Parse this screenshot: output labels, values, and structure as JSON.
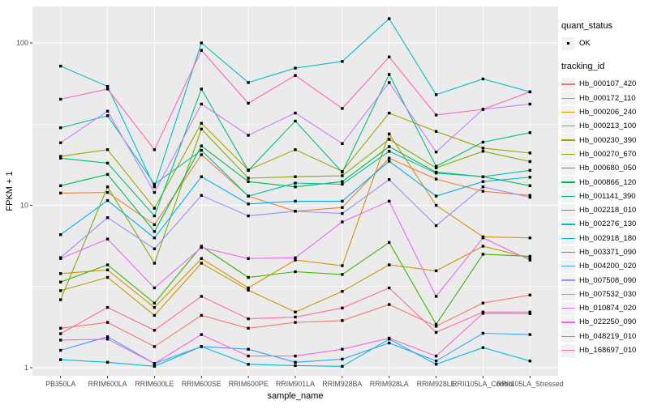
{
  "colors": {
    "panel_bg": "#EBEBEB",
    "grid": "#FFFFFF",
    "legend_key_bg": "#F2F2F2",
    "marker": "#000000",
    "axis_text": "#4D4D4D",
    "title_text": "#000000",
    "tick": "#333333"
  },
  "legend": {
    "quant_status": {
      "title": "quant_status",
      "items": [
        {
          "label": "OK",
          "symbol": "black-square-point"
        }
      ]
    },
    "tracking_id": {
      "title": "tracking_id"
    }
  },
  "chart_data": {
    "type": "line",
    "xlabel": "sample_name",
    "ylabel": "FPKM + 1",
    "yscale": "log10",
    "yticks": [
      1,
      10,
      100
    ],
    "ylim": [
      0.89,
      167
    ],
    "grid": true,
    "legend_position": "right",
    "marker": "black-square",
    "x": [
      "PB350LA",
      "RRIM600LA",
      "RRIM600LE",
      "RRIM600SE",
      "RRIM600PE",
      "RRIM901LA",
      "RRIM928BA",
      "RRIM928LA",
      "RRIM928LE",
      "RRII105LA_Control",
      "RRII105LA_Stressed"
    ],
    "series": [
      {
        "name": "Hb_000107_420",
        "color": "#F8766D",
        "values": [
          1.75,
          1.9,
          1.35,
          2.1,
          1.75,
          1.9,
          1.95,
          2.45,
          1.8,
          2.5,
          2.8
        ]
      },
      {
        "name": "Hb_000172_110",
        "color": "#EA8331",
        "values": [
          11.9,
          12.0,
          7.6,
          20.5,
          11.4,
          9.2,
          9.7,
          19.5,
          14.5,
          12.2,
          11.5
        ]
      },
      {
        "name": "Hb_000206_240",
        "color": "#D89000",
        "values": [
          3.8,
          4.0,
          2.35,
          4.7,
          3.1,
          4.6,
          4.25,
          27.5,
          10.0,
          6.4,
          6.3
        ]
      },
      {
        "name": "Hb_000213_100",
        "color": "#C09B00",
        "values": [
          2.98,
          3.6,
          2.1,
          4.4,
          3.0,
          2.2,
          2.95,
          4.3,
          3.95,
          5.6,
          4.75
        ]
      },
      {
        "name": "Hb_000230_390",
        "color": "#A3A500",
        "values": [
          20.0,
          22.0,
          9.6,
          32.0,
          16.5,
          22.0,
          16.2,
          37.0,
          28.5,
          22.5,
          21.0
        ]
      },
      {
        "name": "Hb_000270_670",
        "color": "#7CAE00",
        "values": [
          2.62,
          13.0,
          4.4,
          29.5,
          14.7,
          15.0,
          15.2,
          25.5,
          17.0,
          21.5,
          18.6
        ]
      },
      {
        "name": "Hb_000680_050",
        "color": "#39B600",
        "values": [
          3.37,
          4.3,
          2.5,
          5.6,
          3.6,
          3.9,
          3.75,
          5.9,
          1.85,
          5.0,
          4.85
        ]
      },
      {
        "name": "Hb_000866_120",
        "color": "#00BB4E",
        "values": [
          13.2,
          15.5,
          6.9,
          23.2,
          14.0,
          13.0,
          14.0,
          23.0,
          16.0,
          15.0,
          13.2
        ]
      },
      {
        "name": "Hb_001141_390",
        "color": "#00BF7D",
        "values": [
          19.5,
          18.2,
          8.6,
          52.0,
          16.4,
          33.0,
          16.0,
          64.0,
          17.4,
          24.5,
          28.0
        ]
      },
      {
        "name": "Hb_002218_010",
        "color": "#00C1A3",
        "values": [
          30.0,
          35.6,
          13.5,
          21.8,
          11.4,
          13.7,
          13.5,
          21.5,
          15.8,
          15.0,
          16.4
        ]
      },
      {
        "name": "Hb_002276_130",
        "color": "#00BFC4",
        "values": [
          72.0,
          54.0,
          13.0,
          100.0,
          57.0,
          70.0,
          77.0,
          141.0,
          48.0,
          60.0,
          50.0
        ]
      },
      {
        "name": "Hb_002918_180",
        "color": "#00BAE0",
        "values": [
          1.12,
          1.08,
          1.02,
          1.35,
          1.05,
          1.03,
          1.02,
          1.5,
          1.05,
          1.33,
          1.1
        ]
      },
      {
        "name": "Hb_003371_090",
        "color": "#00B0F6",
        "values": [
          6.6,
          10.7,
          6.3,
          15.0,
          10.2,
          10.6,
          10.6,
          18.7,
          11.4,
          14.0,
          14.9
        ]
      },
      {
        "name": "Hb_004200_020",
        "color": "#35A2FF",
        "values": [
          1.28,
          1.55,
          1.06,
          1.35,
          1.3,
          1.08,
          1.13,
          1.42,
          1.1,
          1.63,
          1.6
        ]
      },
      {
        "name": "Hb_007508_090",
        "color": "#9590FF",
        "values": [
          4.76,
          8.4,
          5.4,
          11.5,
          8.6,
          9.2,
          8.9,
          14.4,
          7.5,
          13.0,
          11.2
        ]
      },
      {
        "name": "Hb_007532_030",
        "color": "#C77CFF",
        "values": [
          24.3,
          38.0,
          12.0,
          42.0,
          27.0,
          37.0,
          24.0,
          57.0,
          21.3,
          39.0,
          42.0
        ]
      },
      {
        "name": "Hb_010874_020",
        "color": "#E76BF3",
        "values": [
          4.7,
          6.2,
          3.1,
          5.5,
          4.7,
          4.75,
          7.9,
          10.6,
          2.75,
          6.3,
          4.6
        ]
      },
      {
        "name": "Hb_022250_090",
        "color": "#FA62DB",
        "values": [
          1.48,
          1.5,
          1.06,
          1.6,
          1.18,
          1.18,
          1.3,
          1.52,
          1.18,
          2.16,
          2.15
        ]
      },
      {
        "name": "Hb_048219_010",
        "color": "#FF62BC",
        "values": [
          45.0,
          52.0,
          22.0,
          90.0,
          42.5,
          63.0,
          39.5,
          82.0,
          36.0,
          39.0,
          50.0
        ]
      },
      {
        "name": "Hb_168697_010",
        "color": "#FF6A98",
        "values": [
          1.62,
          2.35,
          1.7,
          2.75,
          2.0,
          2.05,
          2.33,
          3.1,
          1.65,
          2.2,
          2.2
        ]
      }
    ]
  }
}
